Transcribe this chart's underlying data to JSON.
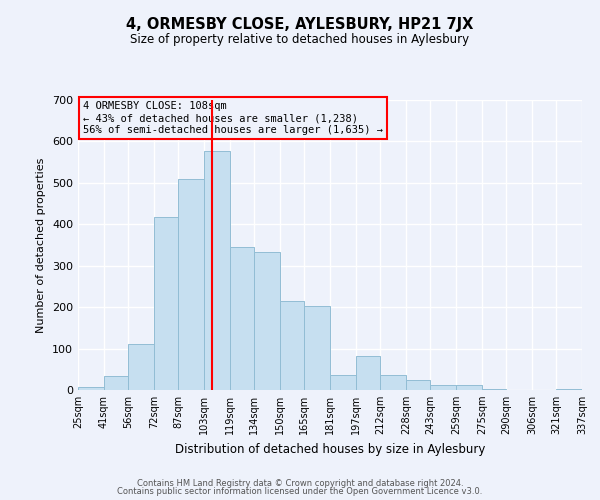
{
  "title": "4, ORMESBY CLOSE, AYLESBURY, HP21 7JX",
  "subtitle": "Size of property relative to detached houses in Aylesbury",
  "xlabel": "Distribution of detached houses by size in Aylesbury",
  "ylabel": "Number of detached properties",
  "bar_color": "#c6dff0",
  "bar_edge_color": "#92bdd4",
  "vline_x": 108,
  "vline_color": "red",
  "annotation_title": "4 ORMESBY CLOSE: 108sqm",
  "annotation_line1": "← 43% of detached houses are smaller (1,238)",
  "annotation_line2": "56% of semi-detached houses are larger (1,635) →",
  "annotation_box_edgecolor": "red",
  "bins_left": [
    25,
    41,
    56,
    72,
    87,
    103,
    119,
    134,
    150,
    165,
    181,
    197,
    212,
    228,
    243,
    259,
    275,
    290,
    306,
    321
  ],
  "bin_width": [
    16,
    15,
    16,
    15,
    16,
    16,
    15,
    16,
    15,
    16,
    16,
    15,
    16,
    15,
    16,
    16,
    15,
    16,
    15,
    16
  ],
  "heights": [
    8,
    35,
    112,
    417,
    510,
    578,
    345,
    333,
    214,
    202,
    37,
    82,
    37,
    25,
    12,
    13,
    2,
    1,
    0,
    2
  ],
  "tick_labels": [
    "25sqm",
    "41sqm",
    "56sqm",
    "72sqm",
    "87sqm",
    "103sqm",
    "119sqm",
    "134sqm",
    "150sqm",
    "165sqm",
    "181sqm",
    "197sqm",
    "212sqm",
    "228sqm",
    "243sqm",
    "259sqm",
    "275sqm",
    "290sqm",
    "306sqm",
    "321sqm",
    "337sqm"
  ],
  "ylim": [
    0,
    700
  ],
  "yticks": [
    0,
    100,
    200,
    300,
    400,
    500,
    600,
    700
  ],
  "footer1": "Contains HM Land Registry data © Crown copyright and database right 2024.",
  "footer2": "Contains public sector information licensed under the Open Government Licence v3.0.",
  "background_color": "#eef2fb",
  "grid_color": "#ffffff"
}
